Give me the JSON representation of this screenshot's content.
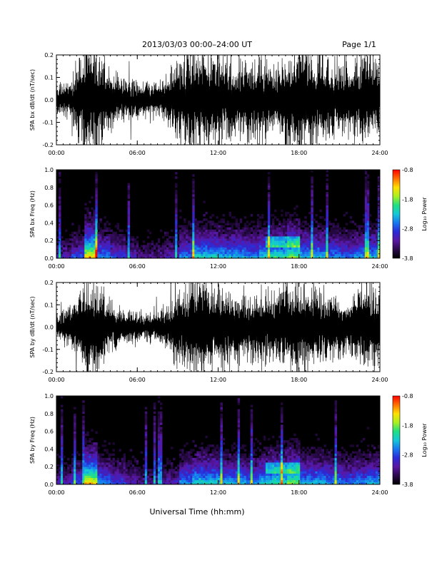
{
  "header": {
    "title": "2013/03/03  00:00–24:00 UT",
    "page": "Page 1/1"
  },
  "footer": {
    "xlabel": "Universal Time (hh:mm)"
  },
  "colors": {
    "trace": "#000000",
    "background_dark": "#000000",
    "colormap": [
      "#000000",
      "#2a0a4a",
      "#5a17a3",
      "#2a2ad8",
      "#1778f0",
      "#14c8d8",
      "#20e080",
      "#a8f020",
      "#ffe000",
      "#ff7000",
      "#ff0000"
    ]
  },
  "chart_data": [
    {
      "type": "line",
      "name": "SPA bx dB/dt",
      "ylabel": "SPA bx dB/dt (nT/sec)",
      "ylim": [
        -0.2,
        0.2
      ],
      "yticks": [
        "-0.2",
        "-0.1",
        "0.0",
        "0.1",
        "0.2"
      ],
      "xlim": [
        "00:00",
        "24:00"
      ],
      "xticks": [
        "00:00",
        "06:00",
        "12:00",
        "18:00",
        "24:00"
      ],
      "x": [
        "00:00",
        "01:00",
        "02:00",
        "03:00",
        "04:00",
        "05:00",
        "06:00",
        "07:00",
        "08:00",
        "09:00",
        "10:00",
        "11:00",
        "12:00",
        "13:00",
        "14:00",
        "15:00",
        "16:00",
        "17:00",
        "18:00",
        "19:00",
        "20:00",
        "21:00",
        "22:00",
        "23:00",
        "24:00"
      ],
      "amplitude": [
        0.06,
        0.08,
        0.2,
        0.2,
        0.12,
        0.08,
        0.07,
        0.06,
        0.08,
        0.16,
        0.2,
        0.2,
        0.18,
        0.16,
        0.14,
        0.16,
        0.14,
        0.18,
        0.2,
        0.18,
        0.16,
        0.14,
        0.14,
        0.2,
        0.12
      ]
    },
    {
      "type": "heatmap",
      "name": "SPA bx Freq",
      "ylabel": "SPA bx Freq (Hz)",
      "ylim": [
        0.0,
        1.0
      ],
      "yticks": [
        "0.0",
        "0.2",
        "0.4",
        "0.6",
        "0.8",
        "1.0"
      ],
      "xlim": [
        "00:00",
        "24:00"
      ],
      "xticks": [
        "00:00",
        "06:00",
        "12:00",
        "18:00",
        "24:00"
      ],
      "colorbar": {
        "label": "Log₁₀ Power",
        "range": [
          -3.8,
          -0.8
        ],
        "ticks": [
          "-0.8",
          "-1.8",
          "-2.8",
          "-3.8"
        ]
      },
      "hour_activity": [
        0.35,
        0.45,
        0.95,
        0.55,
        0.45,
        0.35,
        0.3,
        0.3,
        0.35,
        0.55,
        0.65,
        0.65,
        0.6,
        0.6,
        0.55,
        0.65,
        0.7,
        0.8,
        0.6,
        0.6,
        0.55,
        0.5,
        0.55,
        0.6
      ]
    },
    {
      "type": "line",
      "name": "SPA by dB/dt",
      "ylabel": "SPA by dB/dt (nT/sec)",
      "ylim": [
        -0.2,
        0.2
      ],
      "yticks": [
        "-0.2",
        "-0.1",
        "0.0",
        "0.1",
        "0.2"
      ],
      "xlim": [
        "00:00",
        "24:00"
      ],
      "xticks": [
        "00:00",
        "06:00",
        "12:00",
        "18:00",
        "24:00"
      ],
      "x": [
        "00:00",
        "01:00",
        "02:00",
        "03:00",
        "04:00",
        "05:00",
        "06:00",
        "07:00",
        "08:00",
        "09:00",
        "10:00",
        "11:00",
        "12:00",
        "13:00",
        "14:00",
        "15:00",
        "16:00",
        "17:00",
        "18:00",
        "19:00",
        "20:00",
        "21:00",
        "22:00",
        "23:00",
        "24:00"
      ],
      "amplitude": [
        0.05,
        0.08,
        0.2,
        0.2,
        0.1,
        0.07,
        0.06,
        0.06,
        0.08,
        0.14,
        0.2,
        0.2,
        0.16,
        0.14,
        0.13,
        0.15,
        0.14,
        0.16,
        0.2,
        0.16,
        0.14,
        0.13,
        0.13,
        0.2,
        0.11
      ]
    },
    {
      "type": "heatmap",
      "name": "SPA by Freq",
      "ylabel": "SPA by Freq (Hz)",
      "ylim": [
        0.0,
        1.0
      ],
      "yticks": [
        "0.0",
        "0.2",
        "0.4",
        "0.6",
        "0.8",
        "1.0"
      ],
      "xlim": [
        "00:00",
        "24:00"
      ],
      "xticks": [
        "00:00",
        "06:00",
        "12:00",
        "18:00",
        "24:00"
      ],
      "colorbar": {
        "label": "Log₁₀ Power",
        "range": [
          -3.8,
          -0.8
        ],
        "ticks": [
          "-0.8",
          "-1.8",
          "-2.8",
          "-3.8"
        ]
      },
      "hour_activity": [
        0.35,
        0.45,
        0.95,
        0.55,
        0.45,
        0.35,
        0.3,
        0.3,
        0.35,
        0.55,
        0.65,
        0.65,
        0.6,
        0.6,
        0.55,
        0.65,
        0.7,
        0.8,
        0.6,
        0.6,
        0.55,
        0.5,
        0.55,
        0.6
      ]
    }
  ]
}
